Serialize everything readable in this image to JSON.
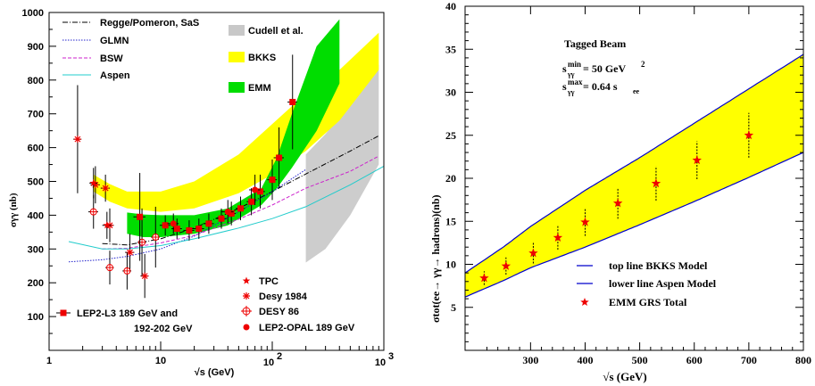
{
  "chart_data": [
    {
      "type": "scatter",
      "xlabel": "√s (GeV)",
      "ylabel": "σγγ (nb)",
      "x_scale": "log",
      "xlim": [
        1,
        1000
      ],
      "ylim": [
        0,
        1000
      ],
      "x_tick_labels": [
        "1",
        "10",
        "10",
        "2",
        "3"
      ],
      "y_ticks": [
        100,
        200,
        300,
        400,
        500,
        600,
        700,
        800,
        900,
        1000
      ],
      "legend_top": [
        {
          "name": "Regge/Pomeron, SaS",
          "style": "dash-dot",
          "color": "#000000"
        },
        {
          "name": "GLMN",
          "style": "dotted",
          "color": "#2323cc"
        },
        {
          "name": "BSW",
          "style": "dashed",
          "color": "#cc22cc"
        },
        {
          "name": "Aspen",
          "style": "solid",
          "color": "#22cccc"
        }
      ],
      "legend_bands": [
        {
          "name": "Cudell et al.",
          "color": "#bbbbbb"
        },
        {
          "name": "BKKS",
          "color": "#ffff00"
        },
        {
          "name": "EMM",
          "color": "#00dd00"
        }
      ],
      "legend_data": [
        {
          "name": "TPC",
          "marker": "star"
        },
        {
          "name": "Desy 1984",
          "marker": "asterisk"
        },
        {
          "name": "DESY 86",
          "marker": "open-circle-cross"
        },
        {
          "name": "LEP2-OPAL 189 GeV",
          "marker": "filled-circle"
        }
      ],
      "legend_lep_l3": [
        "LEP2-L3 189 GeV and",
        "192-202 GeV"
      ],
      "curves": [
        {
          "name": "Regge/Pomeron, SaS",
          "x": [
            3,
            5,
            10,
            20,
            50,
            100,
            200,
            500,
            900
          ],
          "y": [
            316,
            312,
            330,
            362,
            420,
            470,
            522,
            590,
            635
          ]
        },
        {
          "name": "GLMN",
          "x": [
            1.5,
            3,
            5,
            10,
            20,
            50,
            100,
            200
          ],
          "y": [
            262,
            268,
            278,
            300,
            338,
            410,
            470,
            535
          ]
        },
        {
          "name": "BSW",
          "x": [
            3,
            5,
            10,
            20,
            50,
            100,
            200,
            500,
            900
          ],
          "y": [
            300,
            302,
            318,
            340,
            388,
            430,
            480,
            530,
            575
          ]
        },
        {
          "name": "Aspen",
          "x": [
            1.5,
            3,
            5,
            10,
            20,
            50,
            100,
            200,
            500,
            1000
          ],
          "y": [
            322,
            300,
            300,
            310,
            330,
            362,
            390,
            425,
            490,
            545
          ]
        }
      ],
      "bands": [
        {
          "name": "BKKS",
          "x": [
            2.5,
            3.5,
            5,
            10,
            20,
            50,
            100,
            200,
            400,
            900
          ],
          "lower": [
            470,
            440,
            420,
            410,
            420,
            465,
            520,
            590,
            680,
            830
          ],
          "upper": [
            520,
            492,
            470,
            470,
            500,
            580,
            670,
            760,
            830,
            940
          ]
        },
        {
          "name": "EMM",
          "x": [
            5,
            7,
            10,
            20,
            40,
            80,
            110,
            150,
            250,
            400
          ],
          "lower": [
            345,
            335,
            335,
            345,
            370,
            430,
            480,
            540,
            650,
            790
          ],
          "upper": [
            408,
            402,
            400,
            400,
            420,
            480,
            570,
            700,
            900,
            980
          ]
        },
        {
          "name": "Cudell et al.",
          "x": [
            200,
            300,
            500,
            900
          ],
          "lower": [
            260,
            300,
            400,
            550
          ],
          "upper": [
            580,
            640,
            730,
            845
          ]
        }
      ],
      "points": [
        {
          "series": "Desy 1984",
          "x": 1.8,
          "y": 625,
          "yerr": 160,
          "xerr": 0.15
        },
        {
          "series": "Desy 1984",
          "x": 2.6,
          "y": 490,
          "yerr": 55,
          "xerr": 0.25
        },
        {
          "series": "Desy 1984",
          "x": 3.2,
          "y": 480,
          "yerr": 40,
          "xerr": 0.3
        },
        {
          "series": "Desy 1984",
          "x": 3.5,
          "y": 370,
          "yerr": 50,
          "xerr": 0.3
        },
        {
          "series": "Desy 1984",
          "x": 5.3,
          "y": 290,
          "yerr": 55,
          "xerr": 0.5
        },
        {
          "series": "Desy 1984",
          "x": 7.2,
          "y": 220,
          "yerr": 65,
          "xerr": 0.6
        },
        {
          "series": "DESY 86",
          "x": 2.5,
          "y": 410,
          "yerr": 50,
          "xerr": 0.25
        },
        {
          "series": "DESY 86",
          "x": 3.5,
          "y": 245,
          "yerr": 50,
          "xerr": 0.3
        },
        {
          "series": "DESY 86",
          "x": 5.0,
          "y": 235,
          "yerr": 55,
          "xerr": 0.45
        },
        {
          "series": "DESY 86",
          "x": 6.8,
          "y": 320,
          "yerr": 100,
          "xerr": 0.6
        },
        {
          "series": "DESY 86",
          "x": 9.0,
          "y": 335,
          "yerr": 90,
          "xerr": 0.8
        },
        {
          "series": "TPC",
          "x": 2.5,
          "y": 495,
          "yerr": 45,
          "xerr": 0.2
        },
        {
          "series": "TPC",
          "x": 3.3,
          "y": 370,
          "yerr": 40,
          "xerr": 0.3
        },
        {
          "series": "LEP2-L3 189 GeV and",
          "x": 6.5,
          "y": 395,
          "yerr": 130,
          "xerr": 0.8
        },
        {
          "series": "LEP2-L3 189 GeV and",
          "x": 11,
          "y": 370,
          "yerr": 30,
          "xerr": 1.2
        },
        {
          "series": "LEP2-L3 189 GeV and",
          "x": 14,
          "y": 360,
          "yerr": 30,
          "xerr": 1.5
        },
        {
          "series": "LEP2-L3 189 GeV and",
          "x": 18,
          "y": 355,
          "yerr": 30,
          "xerr": 2
        },
        {
          "series": "LEP2-L3 189 GeV and",
          "x": 22,
          "y": 360,
          "yerr": 30,
          "xerr": 2.5
        },
        {
          "series": "LEP2-L3 189 GeV and",
          "x": 27,
          "y": 375,
          "yerr": 30,
          "xerr": 3
        },
        {
          "series": "LEP2-L3 189 GeV and",
          "x": 35,
          "y": 390,
          "yerr": 30,
          "xerr": 4
        },
        {
          "series": "LEP2-L3 189 GeV and",
          "x": 43,
          "y": 405,
          "yerr": 35,
          "xerr": 4
        },
        {
          "series": "LEP2-L3 189 GeV and",
          "x": 52,
          "y": 420,
          "yerr": 35,
          "xerr": 5
        },
        {
          "series": "LEP2-L3 189 GeV and",
          "x": 65,
          "y": 440,
          "yerr": 40,
          "xerr": 6
        },
        {
          "series": "LEP2-L3 189 GeV and",
          "x": 78,
          "y": 470,
          "yerr": 50,
          "xerr": 8
        },
        {
          "series": "LEP2-L3 189 GeV and",
          "x": 100,
          "y": 505,
          "yerr": 60,
          "xerr": 10
        },
        {
          "series": "LEP2-L3 189 GeV and",
          "x": 115,
          "y": 570,
          "yerr": 90,
          "xerr": 12
        },
        {
          "series": "LEP2-L3 189 GeV and",
          "x": 152,
          "y": 735,
          "yerr": 140,
          "xerr": 15
        },
        {
          "series": "LEP2-OPAL 189 GeV",
          "x": 13,
          "y": 375,
          "yerr": 30,
          "xerr": 1.5
        },
        {
          "series": "LEP2-OPAL 189 GeV",
          "x": 40,
          "y": 410,
          "yerr": 35,
          "xerr": 5
        },
        {
          "series": "LEP2-OPAL 189 GeV",
          "x": 70,
          "y": 475,
          "yerr": 45,
          "xerr": 8
        }
      ]
    },
    {
      "type": "area",
      "title": "Tagged Beam",
      "annotation_lines": [
        "s",
        "min",
        "γγ",
        " = 50 GeV",
        "2",
        "s",
        "max",
        "γγ",
        " = 0.64 s",
        "ee"
      ],
      "ylabel": "σtot(ee→ γγ→ hadrons)(nb)",
      "xlabel": "√s (GeV)",
      "xlim": [
        180,
        800
      ],
      "ylim": [
        0,
        40
      ],
      "x_ticks": [
        300,
        400,
        500,
        600,
        700,
        800
      ],
      "y_ticks": [
        5,
        10,
        15,
        20,
        25,
        30,
        35,
        40
      ],
      "band": {
        "x": [
          180,
          250,
          300,
          400,
          500,
          600,
          700,
          800
        ],
        "upper": [
          9.0,
          12.0,
          14.4,
          18.6,
          22.4,
          26.4,
          30.4,
          34.4
        ],
        "lower": [
          6.2,
          8.1,
          9.6,
          12.0,
          14.6,
          17.3,
          20.1,
          23.0
        ]
      },
      "series": [
        {
          "name": "EMM GRS Total",
          "x": [
            215,
            255,
            305,
            350,
            400,
            460,
            530,
            605,
            700
          ],
          "y": [
            8.4,
            9.8,
            11.3,
            13.1,
            14.9,
            17.1,
            19.4,
            22.1,
            25.0
          ],
          "yerr": [
            0.8,
            1.0,
            1.2,
            1.4,
            1.6,
            1.8,
            2.0,
            2.2,
            2.6
          ]
        }
      ],
      "legend": [
        {
          "name": "top line BKKS Model",
          "style": "line",
          "color": "#0000cc"
        },
        {
          "name": "lower line Aspen Model",
          "style": "line",
          "color": "#0000cc"
        },
        {
          "name": "EMM GRS Total",
          "style": "star",
          "color": "#ff0000"
        }
      ]
    }
  ]
}
